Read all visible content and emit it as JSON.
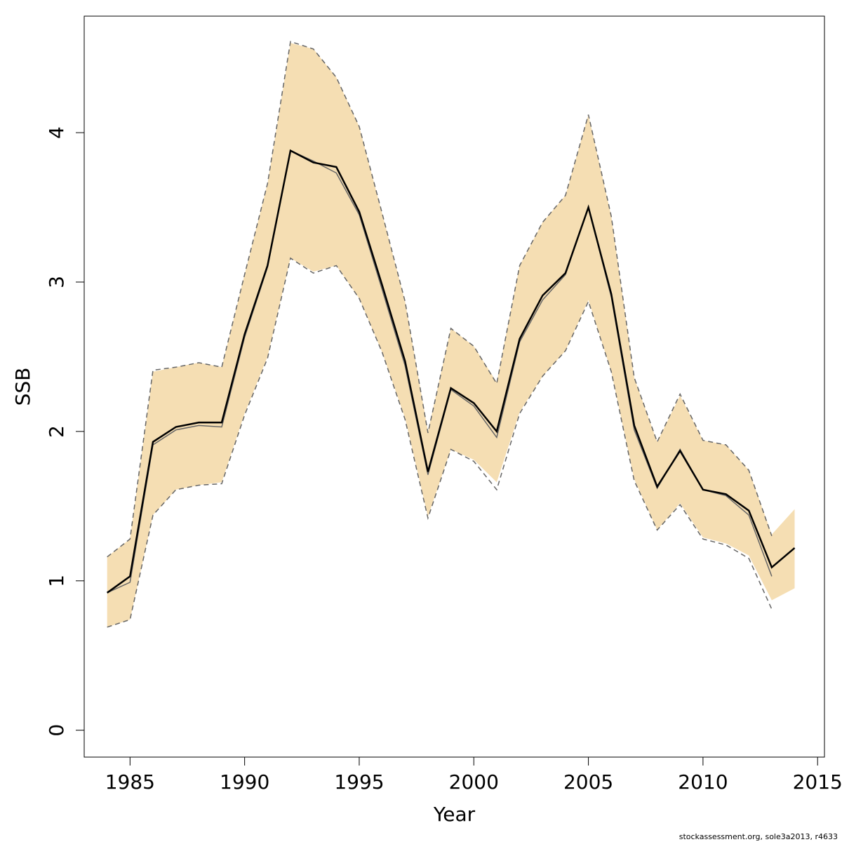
{
  "chart_data": {
    "type": "line",
    "xlabel": "Year",
    "ylabel": "SSB",
    "xlim": [
      1983,
      2015.3
    ],
    "ylim": [
      -0.18,
      4.78
    ],
    "x_ticks": [
      1985,
      1990,
      1995,
      2000,
      2005,
      2010,
      2015
    ],
    "y_ticks": [
      0,
      1,
      2,
      3,
      4
    ],
    "grid": false,
    "legend": "none",
    "x": [
      1984,
      1985,
      1986,
      1987,
      1988,
      1989,
      1990,
      1991,
      1992,
      1993,
      1994,
      1995,
      1996,
      1997,
      1998,
      1999,
      2000,
      2001,
      2002,
      2003,
      2004,
      2005,
      2006,
      2007,
      2008,
      2009,
      2010,
      2011,
      2012,
      2013,
      2014
    ],
    "band": {
      "color": "#F5DEB3",
      "x": [
        1984,
        1985,
        1986,
        1987,
        1988,
        1989,
        1990,
        1991,
        1992,
        1993,
        1994,
        1995,
        1996,
        1997,
        1998,
        1999,
        2000,
        2001,
        2002,
        2003,
        2004,
        2005,
        2006,
        2007,
        2008,
        2009,
        2010,
        2011,
        2012,
        2013,
        2014
      ],
      "upper": [
        1.16,
        1.28,
        2.4,
        2.43,
        2.46,
        2.43,
        3.05,
        3.66,
        4.6,
        4.56,
        4.37,
        4.04,
        3.46,
        2.87,
        2.0,
        2.69,
        2.57,
        2.33,
        3.11,
        3.4,
        3.58,
        4.12,
        3.44,
        2.36,
        1.93,
        2.24,
        1.94,
        1.91,
        1.74,
        1.31,
        1.48
      ],
      "lower": [
        0.69,
        0.74,
        1.44,
        1.61,
        1.64,
        1.66,
        2.12,
        2.5,
        3.16,
        3.07,
        3.11,
        2.89,
        2.53,
        2.09,
        1.43,
        1.88,
        1.81,
        1.66,
        2.13,
        2.37,
        2.54,
        2.88,
        2.4,
        1.68,
        1.34,
        1.52,
        1.29,
        1.25,
        1.17,
        0.87,
        0.95
      ]
    },
    "series": [
      {
        "role": "current-estimate",
        "color": "#000000",
        "x": [
          1984,
          1985,
          1986,
          1987,
          1988,
          1989,
          1990,
          1991,
          1992,
          1993,
          1994,
          1995,
          1996,
          1997,
          1998,
          1999,
          2000,
          2001,
          2002,
          2003,
          2004,
          2005,
          2006,
          2007,
          2008,
          2009,
          2010,
          2011,
          2012,
          2013,
          2014
        ],
        "values": [
          0.92,
          1.03,
          1.93,
          2.03,
          2.06,
          2.06,
          2.65,
          3.11,
          3.88,
          3.8,
          3.77,
          3.47,
          2.98,
          2.47,
          1.73,
          2.29,
          2.19,
          2.0,
          2.62,
          2.91,
          3.06,
          3.5,
          2.92,
          2.04,
          1.63,
          1.87,
          1.61,
          1.58,
          1.47,
          1.09,
          1.22
        ]
      },
      {
        "role": "previous-estimate",
        "color": "#666666",
        "x": [
          1984,
          1985,
          1986,
          1987,
          1988,
          1989,
          1990,
          1991,
          1992,
          1993,
          1994,
          1995,
          1996,
          1997,
          1998,
          1999,
          2000,
          2001,
          2002,
          2003,
          2004,
          2005,
          2006,
          2007,
          2008,
          2009,
          2010,
          2011,
          2012,
          2013
        ],
        "values": [
          0.92,
          0.99,
          1.91,
          2.01,
          2.04,
          2.03,
          2.63,
          3.1,
          3.88,
          3.81,
          3.73,
          3.45,
          2.95,
          2.44,
          1.71,
          2.28,
          2.17,
          1.96,
          2.6,
          2.88,
          3.05,
          3.5,
          2.9,
          2.01,
          1.62,
          1.88,
          1.61,
          1.57,
          1.44,
          1.03
        ]
      }
    ],
    "previous_bounds": {
      "color": "#666666",
      "style": "dashed",
      "x": [
        1984,
        1985,
        1986,
        1987,
        1988,
        1989,
        1990,
        1991,
        1992,
        1993,
        1994,
        1995,
        1996,
        1997,
        1998,
        1999,
        2000,
        2001,
        2002,
        2003,
        2004,
        2005,
        2006,
        2007,
        2008,
        2009,
        2010,
        2011,
        2012,
        2013
      ],
      "upper": [
        1.16,
        1.28,
        2.41,
        2.43,
        2.46,
        2.43,
        3.05,
        3.66,
        4.61,
        4.56,
        4.37,
        4.04,
        3.46,
        2.87,
        1.99,
        2.69,
        2.57,
        2.32,
        3.11,
        3.4,
        3.58,
        4.12,
        3.44,
        2.36,
        1.93,
        2.25,
        1.94,
        1.91,
        1.74,
        1.3
      ],
      "lower": [
        0.69,
        0.74,
        1.44,
        1.61,
        1.64,
        1.65,
        2.11,
        2.49,
        3.16,
        3.06,
        3.11,
        2.89,
        2.53,
        2.08,
        1.42,
        1.88,
        1.8,
        1.61,
        2.12,
        2.37,
        2.54,
        2.87,
        2.4,
        1.67,
        1.34,
        1.51,
        1.28,
        1.24,
        1.15,
        0.81
      ]
    }
  },
  "footer": {
    "note": "stockassessment.org, sole3a2013, r4633"
  }
}
